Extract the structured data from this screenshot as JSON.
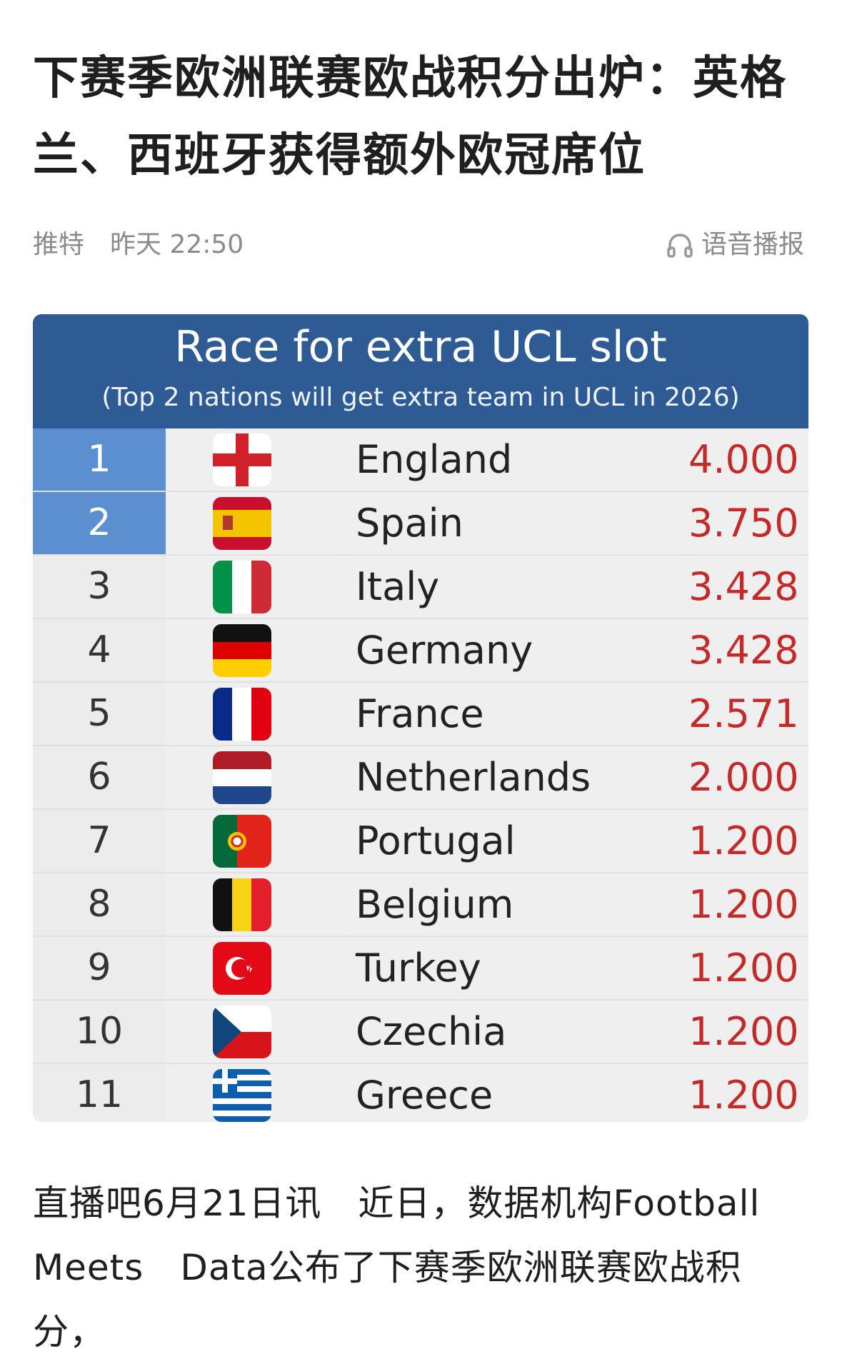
{
  "article": {
    "title": "下赛季欧洲联赛欧战积分出炉：英格兰、西班牙获得额外欧冠席位",
    "source": "推特",
    "time": "昨天 22:50",
    "tts_label": "语音播报",
    "body": "直播吧6月21日讯　近日，数据机构Football Meets　Data公布了下赛季欧洲联赛欧战积分，"
  },
  "graphic": {
    "title": "Race for extra UCL slot",
    "subtitle": "(Top 2 nations will get extra team in UCL in 2026)",
    "header_color": "#2e5b94",
    "highlight_color": "#5b8fd0",
    "score_color": "#c42a2a",
    "rows": [
      {
        "rank": "1",
        "name": "England",
        "score": "4.000",
        "flag_icon": "england-flag-icon"
      },
      {
        "rank": "2",
        "name": "Spain",
        "score": "3.750",
        "flag_icon": "spain-flag-icon"
      },
      {
        "rank": "3",
        "name": "Italy",
        "score": "3.428",
        "flag_icon": "italy-flag-icon"
      },
      {
        "rank": "4",
        "name": "Germany",
        "score": "3.428",
        "flag_icon": "germany-flag-icon"
      },
      {
        "rank": "5",
        "name": "France",
        "score": "2.571",
        "flag_icon": "france-flag-icon"
      },
      {
        "rank": "6",
        "name": "Netherlands",
        "score": "2.000",
        "flag_icon": "netherlands-flag-icon"
      },
      {
        "rank": "7",
        "name": "Portugal",
        "score": "1.200",
        "flag_icon": "portugal-flag-icon"
      },
      {
        "rank": "8",
        "name": "Belgium",
        "score": "1.200",
        "flag_icon": "belgium-flag-icon"
      },
      {
        "rank": "9",
        "name": "Turkey",
        "score": "1.200",
        "flag_icon": "turkey-flag-icon"
      },
      {
        "rank": "10",
        "name": "Czechia",
        "score": "1.200",
        "flag_icon": "czechia-flag-icon"
      },
      {
        "rank": "11",
        "name": "Greece",
        "score": "1.200",
        "flag_icon": "greece-flag-icon"
      }
    ]
  }
}
